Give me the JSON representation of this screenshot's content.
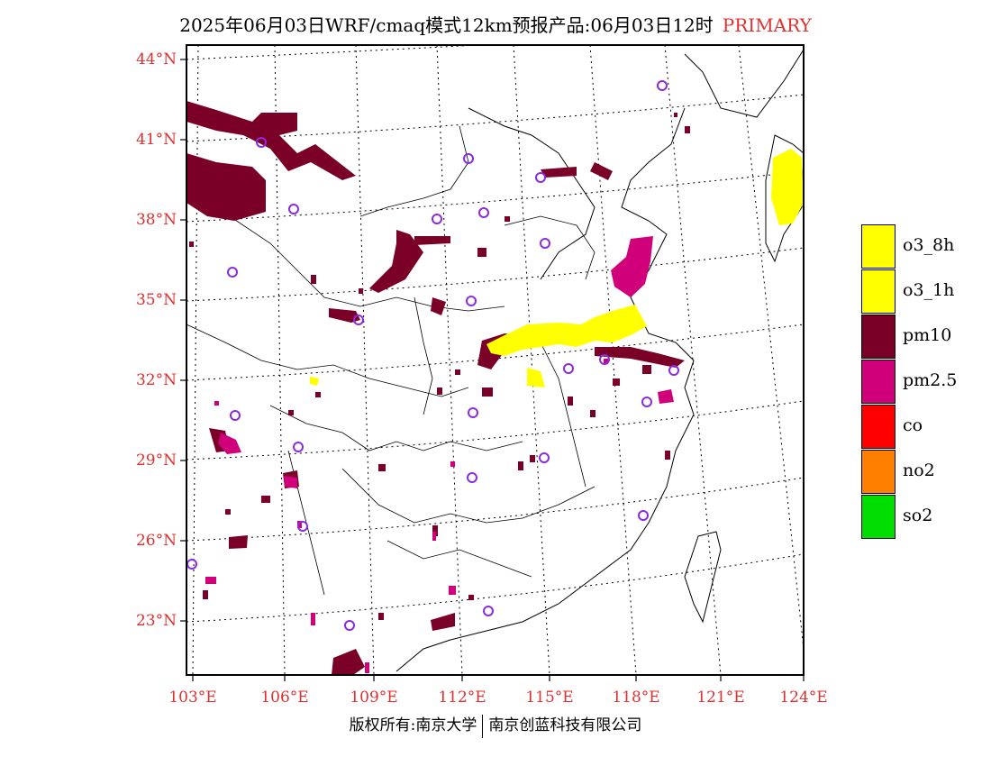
{
  "title": {
    "main": "2025年06月03日WRF/cmaq模式12km预报产品:06月03日12时",
    "tag": "PRIMARY"
  },
  "map": {
    "lat_labels": [
      "44°N",
      "41°N",
      "38°N",
      "35°N",
      "32°N",
      "29°N",
      "26°N",
      "23°N"
    ],
    "lon_labels": [
      "103°E",
      "106°E",
      "109°E",
      "112°E",
      "115°E",
      "118°E",
      "121°E",
      "124°E"
    ]
  },
  "legend": {
    "items": [
      {
        "label": "o3_8h",
        "color": "#ffff00"
      },
      {
        "label": "o3_1h",
        "color": "#ffff00"
      },
      {
        "label": "pm10",
        "color": "#7a0028"
      },
      {
        "label": "pm2.5",
        "color": "#d0007a"
      },
      {
        "label": "co",
        "color": "#ff0000"
      },
      {
        "label": "no2",
        "color": "#ff8000"
      },
      {
        "label": "so2",
        "color": "#00dd00"
      }
    ]
  },
  "footer": {
    "left": "版权所有:南京大学",
    "right": "南京创蓝科技有限公司"
  },
  "colors": {
    "pm10": "#7a0028",
    "pm25": "#d0007a",
    "o3": "#ffff00",
    "station": "#8a2be2",
    "grid": "#000000",
    "label": "#e03030"
  }
}
